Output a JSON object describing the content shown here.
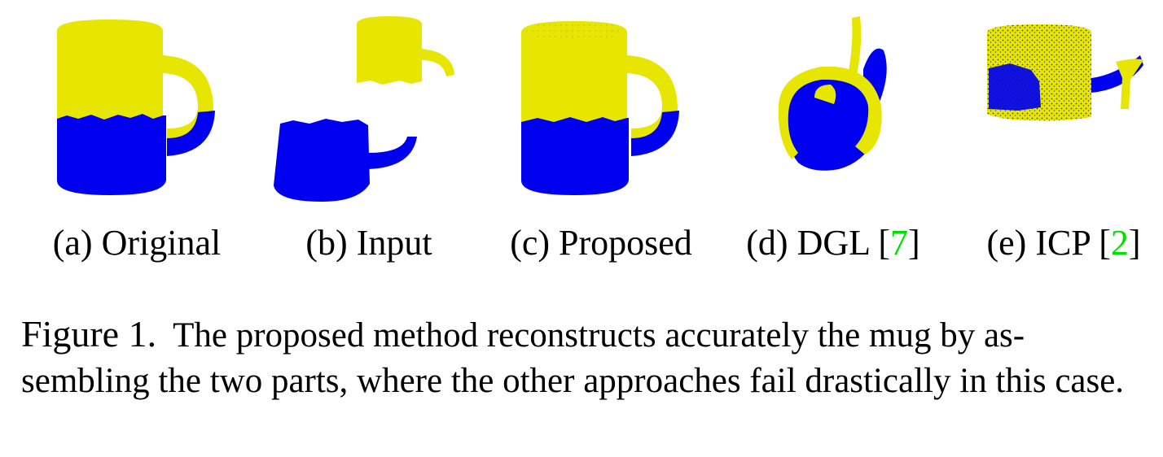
{
  "colors": {
    "part_top": "#e6e600",
    "part_bottom": "#0000f0",
    "citation": "#00e000"
  },
  "panels": [
    {
      "letter": "(a)",
      "name": "Original"
    },
    {
      "letter": "(b)",
      "name": "Input"
    },
    {
      "letter": "(c)",
      "name": "Proposed"
    },
    {
      "letter": "(d)",
      "name": "DGL",
      "cite": "7"
    },
    {
      "letter": "(e)",
      "name": "ICP",
      "cite": "2"
    }
  ],
  "caption": {
    "label": "Figure 1.",
    "text": "The proposed method reconstructs accurately the mug by as-sembling the two parts, where the other approaches fail drastically in this case."
  }
}
